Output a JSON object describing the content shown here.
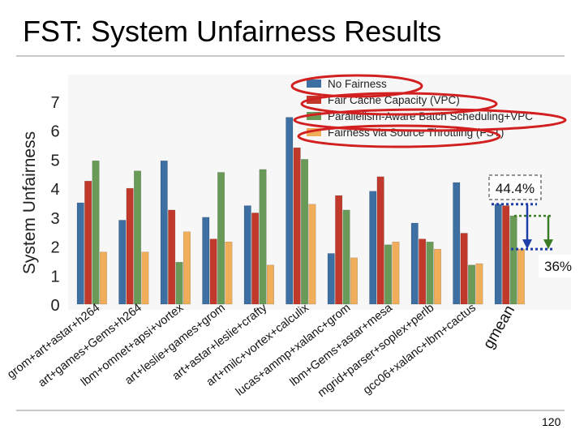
{
  "slide": {
    "title": "FST: System Unfairness Results",
    "page_number": "120"
  },
  "annotations": {
    "mean_box_label": "44.4%",
    "reduction_label": "36%",
    "outline_color": "#d21f1f",
    "dotted_color": "#1f3fa8",
    "arrow_blue": "#1f3fa8",
    "arrow_green": "#3a7d25"
  },
  "chart_data": {
    "type": "bar",
    "title": "",
    "xlabel": "",
    "ylabel": "System Unfairness",
    "ylim": [
      0,
      7
    ],
    "yticks": [
      0,
      1,
      2,
      3,
      4,
      5,
      6,
      7
    ],
    "grid": false,
    "legend_position": "top",
    "categories": [
      "grom+art+astar+h264",
      "art+games+Gems+h264",
      "lbm+omnet+apsi+vortex",
      "art+leslie+games+grom",
      "art+astar+leslie+crafty",
      "art+milc+vortex+calculix",
      "lucas+ammp+xalanc+grom",
      "lbm+Gems+astar+mesa",
      "mgrid+parser+soplex+perlb",
      "gcc06+xalanc+lbm+cactus",
      "gmean"
    ],
    "series": [
      {
        "name": "No Fairness",
        "color": "#3d6fa3",
        "values": [
          3.5,
          2.9,
          4.95,
          3.0,
          3.4,
          6.45,
          1.75,
          3.9,
          2.8,
          4.2,
          3.45
        ]
      },
      {
        "name": "Fair Cache Capacity (VPC)",
        "color": "#c0392b",
        "values": [
          4.25,
          4.0,
          3.25,
          2.25,
          3.15,
          5.4,
          3.75,
          4.4,
          2.25,
          2.45,
          3.4
        ]
      },
      {
        "name": "Parallelism-Aware Batch Scheduling+VPC",
        "color": "#6a9a57",
        "values": [
          4.95,
          4.6,
          1.45,
          4.55,
          4.65,
          5.0,
          3.25,
          2.05,
          2.15,
          1.35,
          3.05
        ]
      },
      {
        "name": "Fairness via Source Throttling (FST)",
        "color": "#f0ad5a",
        "values": [
          1.8,
          1.8,
          2.5,
          2.15,
          1.35,
          3.45,
          1.6,
          2.15,
          1.9,
          1.4,
          1.9
        ]
      }
    ]
  }
}
